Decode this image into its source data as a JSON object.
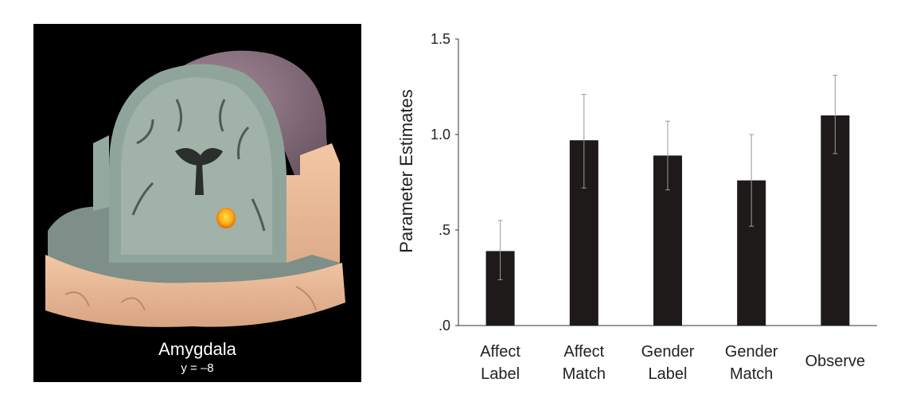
{
  "figure": {
    "region_name": "Amygdala",
    "region_coord": "y = –8"
  },
  "chart_data": {
    "type": "bar",
    "ylabel": "Parameter Estimates",
    "ylim": [
      0,
      1.5
    ],
    "yticks": [
      0,
      0.5,
      1.0,
      1.5
    ],
    "ytick_labels": [
      ".0",
      ".5",
      "1.0",
      "1.5"
    ],
    "categories": [
      [
        "Affect",
        "Label"
      ],
      [
        "Affect",
        "Match"
      ],
      [
        "Gender",
        "Label"
      ],
      [
        "Gender",
        "Match"
      ],
      [
        "Observe"
      ]
    ],
    "values": [
      0.39,
      0.97,
      0.89,
      0.76,
      1.1
    ],
    "error_low": [
      0.24,
      0.72,
      0.71,
      0.52,
      0.9
    ],
    "error_high": [
      0.55,
      1.21,
      1.07,
      1.0,
      1.31
    ],
    "bar_color": "#1f1a1a"
  }
}
